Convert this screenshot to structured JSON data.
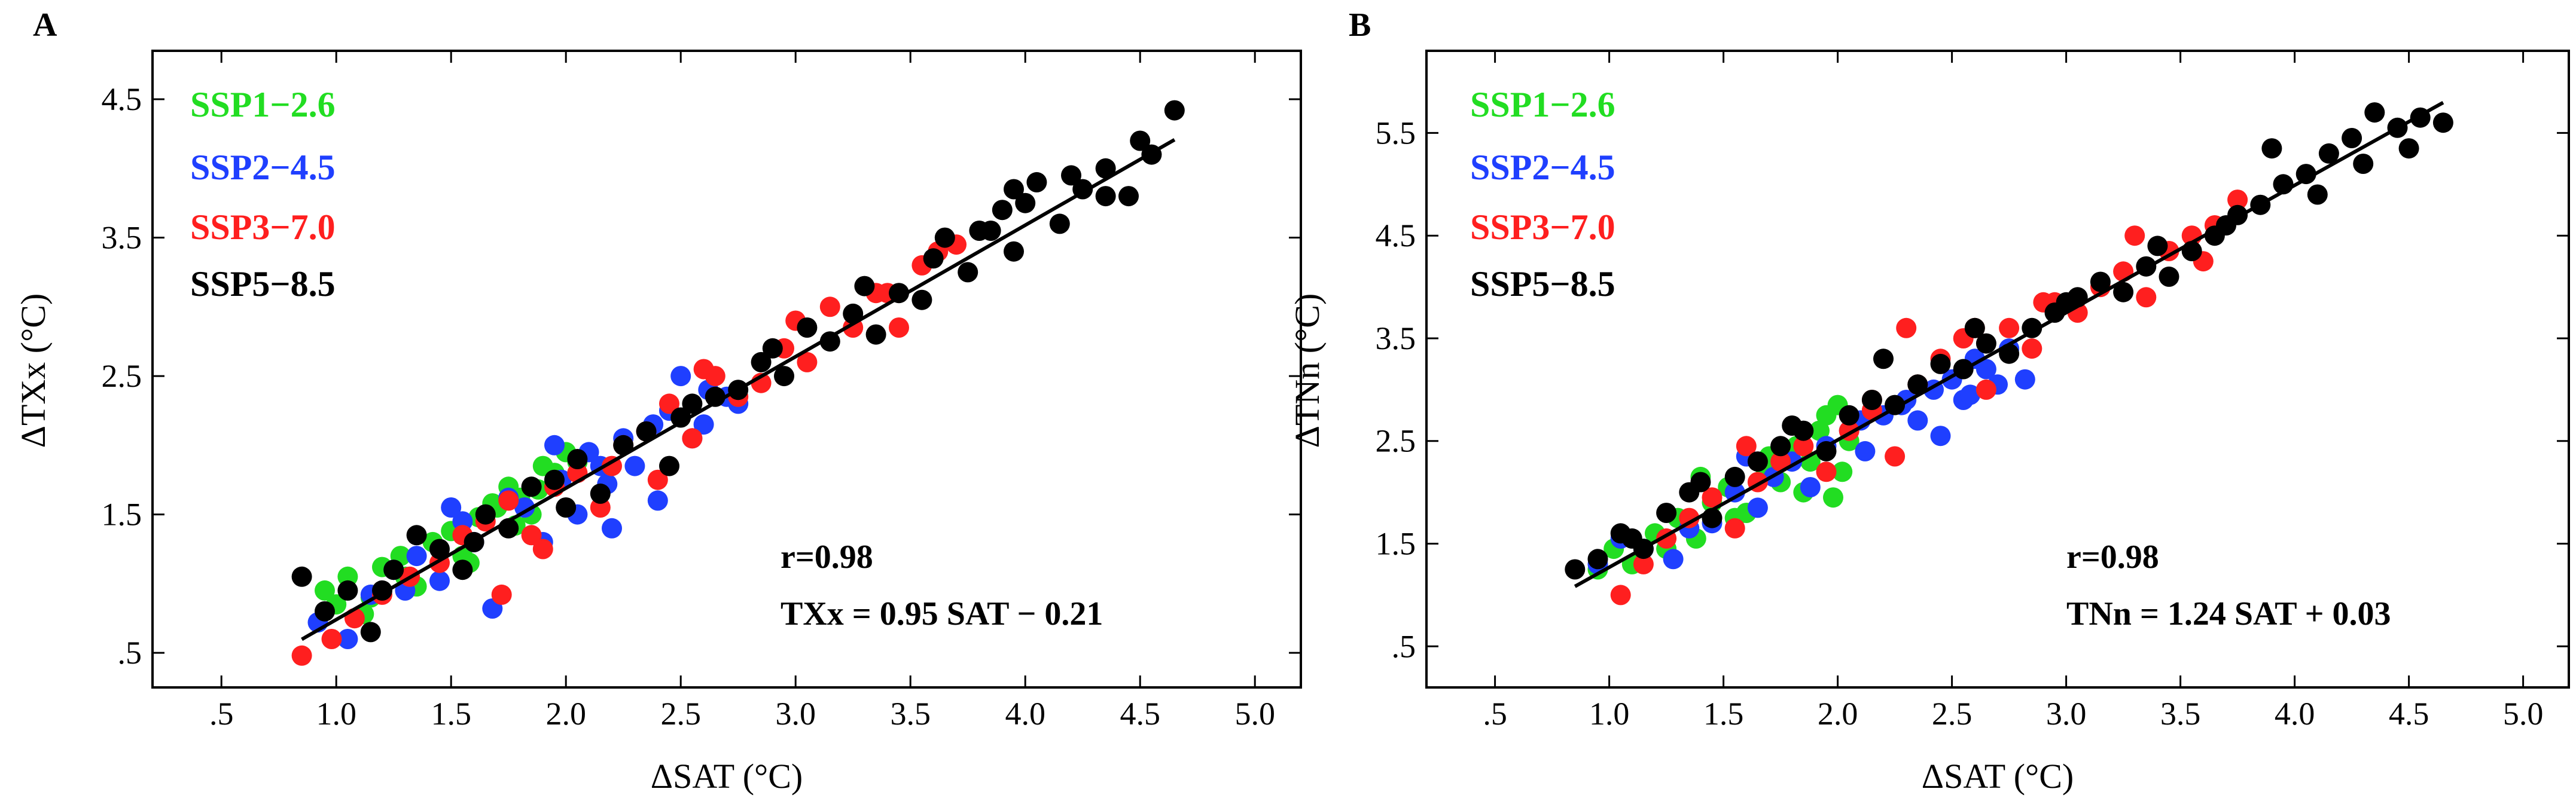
{
  "colors": {
    "SSP1-2.6": "#22dd22",
    "SSP2-4.5": "#1f3fff",
    "SSP3-7.0": "#ff1f1f",
    "SSP5-8.5": "#000000",
    "axis": "#000000",
    "fit_line": "#000000"
  },
  "chart_data": [
    {
      "type": "scatter",
      "panel_label": "A",
      "xlabel": "ΔSAT (°C)",
      "ylabel": "ΔTXx (°C)",
      "xlim": [
        0.2,
        5.2
      ],
      "ylim": [
        0.25,
        4.85
      ],
      "x_tick_values": [
        0.5,
        1.0,
        1.5,
        2.0,
        2.5,
        3.0,
        3.5,
        4.0,
        4.5,
        5.0
      ],
      "x_tick_labels": [
        ".5",
        "1.0",
        "1.5",
        "2.0",
        "2.5",
        "3.0",
        "3.5",
        "4.0",
        "4.5",
        "5.0"
      ],
      "y_tick_values": [
        0.5,
        1.5,
        2.5,
        3.5,
        4.5
      ],
      "y_tick_labels": [
        ".5",
        "1.5",
        "2.5",
        "3.5",
        "4.5"
      ],
      "legend": [
        "SSP1−2.6",
        "SSP2−4.5",
        "SSP3−7.0",
        "SSP5−8.5"
      ],
      "legend_position": "top-left",
      "r_text": "r=0.98",
      "equation_text": "TXx = 0.95 SAT − 0.21",
      "fit": {
        "slope": 0.95,
        "intercept": -0.21,
        "x_range": [
          0.85,
          4.65
        ]
      },
      "series": [
        {
          "name": "SSP1-2.6",
          "x": [
            0.95,
            1.0,
            1.05,
            1.12,
            1.2,
            1.28,
            1.35,
            1.42,
            1.5,
            1.55,
            1.62,
            1.7,
            1.75,
            1.8,
            1.85,
            1.9,
            1.95,
            2.0,
            1.78,
            1.68,
            1.88,
            1.58,
            1.3,
            2.05,
            1.15
          ],
          "y": [
            0.95,
            0.85,
            1.05,
            0.78,
            1.12,
            1.2,
            0.98,
            1.3,
            1.38,
            1.2,
            1.48,
            1.55,
            1.7,
            1.62,
            1.5,
            1.85,
            1.8,
            1.95,
            1.42,
            1.58,
            1.68,
            1.15,
            1.05,
            1.88,
            0.9
          ]
        },
        {
          "name": "SSP2-4.5",
          "x": [
            0.92,
            1.05,
            1.15,
            1.25,
            1.35,
            1.45,
            1.55,
            1.6,
            1.68,
            1.75,
            1.82,
            1.9,
            1.98,
            2.05,
            2.1,
            2.18,
            2.25,
            2.3,
            2.38,
            2.45,
            2.5,
            2.55,
            2.62,
            2.7,
            2.75,
            2.2,
            2.4,
            1.95,
            1.5,
            2.15,
            2.6,
            1.3
          ],
          "y": [
            0.72,
            0.6,
            0.92,
            1.1,
            1.2,
            1.02,
            1.45,
            1.3,
            0.82,
            1.62,
            1.55,
            1.3,
            1.75,
            1.5,
            1.95,
            1.72,
            2.05,
            1.85,
            2.15,
            2.25,
            2.5,
            2.05,
            2.4,
            2.35,
            2.3,
            1.4,
            1.6,
            2.0,
            1.55,
            1.85,
            2.15,
            0.95
          ]
        },
        {
          "name": "SSP3-7.0",
          "x": [
            0.85,
            0.98,
            1.08,
            1.2,
            1.32,
            1.45,
            1.55,
            1.65,
            1.75,
            1.85,
            1.95,
            2.05,
            2.15,
            2.25,
            2.35,
            2.45,
            2.55,
            2.65,
            2.75,
            2.85,
            2.95,
            3.05,
            3.15,
            3.25,
            3.35,
            3.45,
            3.55,
            3.62,
            3.7,
            1.72,
            2.2,
            2.6,
            3.0,
            3.4,
            2.4,
            1.9
          ],
          "y": [
            0.48,
            0.6,
            0.75,
            0.92,
            1.05,
            1.15,
            1.35,
            1.45,
            1.6,
            1.35,
            1.7,
            1.8,
            1.55,
            2.0,
            2.1,
            2.3,
            2.05,
            2.5,
            2.35,
            2.45,
            2.7,
            2.6,
            3.0,
            2.85,
            3.1,
            2.85,
            3.3,
            3.4,
            3.45,
            0.92,
            1.85,
            2.55,
            2.9,
            3.1,
            1.75,
            1.25
          ]
        },
        {
          "name": "SSP5-8.5",
          "x": [
            0.85,
            0.95,
            1.05,
            1.15,
            1.25,
            1.35,
            1.45,
            1.55,
            1.65,
            1.75,
            1.85,
            1.95,
            2.05,
            2.15,
            2.25,
            2.35,
            2.45,
            2.55,
            2.65,
            2.75,
            2.85,
            2.95,
            3.05,
            3.15,
            3.25,
            3.35,
            3.45,
            3.55,
            3.65,
            3.75,
            3.85,
            3.9,
            3.95,
            4.05,
            4.15,
            4.25,
            4.35,
            4.45,
            4.55,
            4.65,
            3.8,
            4.0,
            4.2,
            4.5,
            3.6,
            3.3,
            2.9,
            2.5,
            2.0,
            1.6,
            1.2,
            3.95,
            4.35
          ],
          "y": [
            1.05,
            0.8,
            0.95,
            0.65,
            1.1,
            1.35,
            1.25,
            1.1,
            1.5,
            1.4,
            1.7,
            1.75,
            1.9,
            1.65,
            2.0,
            2.1,
            1.85,
            2.3,
            2.35,
            2.4,
            2.6,
            2.5,
            2.85,
            2.75,
            2.95,
            2.8,
            3.1,
            3.05,
            3.5,
            3.25,
            3.55,
            3.7,
            3.4,
            3.9,
            3.6,
            3.85,
            4.0,
            3.8,
            4.1,
            4.42,
            3.55,
            3.75,
            3.95,
            4.2,
            3.35,
            3.15,
            2.7,
            2.2,
            1.55,
            1.3,
            0.95,
            3.85,
            3.8
          ]
        }
      ]
    },
    {
      "type": "scatter",
      "panel_label": "B",
      "xlabel": "ΔSAT (°C)",
      "ylabel": "ΔTNn (°C)",
      "xlim": [
        0.2,
        5.2
      ],
      "ylim": [
        0.1,
        6.3
      ],
      "x_tick_values": [
        0.5,
        1.0,
        1.5,
        2.0,
        2.5,
        3.0,
        3.5,
        4.0,
        4.5,
        5.0
      ],
      "x_tick_labels": [
        ".5",
        "1.0",
        "1.5",
        "2.0",
        "2.5",
        "3.0",
        "3.5",
        "4.0",
        "4.5",
        "5.0"
      ],
      "y_tick_values": [
        0.5,
        1.5,
        2.5,
        3.5,
        4.5,
        5.5
      ],
      "y_tick_labels": [
        ".5",
        "1.5",
        "2.5",
        "3.5",
        "4.5",
        "5.5"
      ],
      "legend": [
        "SSP1−2.6",
        "SSP2−4.5",
        "SSP3−7.0",
        "SSP5−8.5"
      ],
      "legend_position": "top-left",
      "r_text": "r=0.98",
      "equation_text": "TNn = 1.24 SAT + 0.03",
      "fit": {
        "slope": 1.24,
        "intercept": 0.03,
        "x_range": [
          0.85,
          4.65
        ]
      },
      "series": [
        {
          "name": "SSP1-2.6",
          "x": [
            0.95,
            1.02,
            1.1,
            1.2,
            1.3,
            1.38,
            1.45,
            1.52,
            1.6,
            1.68,
            1.75,
            1.82,
            1.88,
            1.92,
            1.95,
            2.0,
            2.05,
            1.98,
            1.85,
            1.7,
            1.55,
            1.4,
            1.25,
            2.02
          ],
          "y": [
            1.25,
            1.45,
            1.3,
            1.6,
            1.75,
            1.55,
            1.9,
            2.05,
            1.8,
            2.25,
            2.1,
            2.45,
            2.3,
            2.6,
            2.75,
            2.85,
            2.5,
            1.95,
            2.0,
            2.35,
            1.75,
            2.15,
            1.45,
            2.2
          ]
        },
        {
          "name": "SSP2-4.5",
          "x": [
            0.95,
            1.05,
            1.15,
            1.28,
            1.35,
            1.45,
            1.55,
            1.65,
            1.72,
            1.8,
            1.88,
            1.95,
            2.05,
            2.12,
            2.2,
            2.28,
            2.35,
            2.42,
            2.5,
            2.55,
            2.6,
            2.65,
            2.7,
            2.75,
            2.82,
            2.45,
            2.3,
            2.1,
            1.6,
            2.58
          ],
          "y": [
            1.3,
            1.55,
            1.45,
            1.35,
            1.65,
            1.7,
            2.0,
            1.85,
            2.15,
            2.3,
            2.05,
            2.45,
            2.6,
            2.4,
            2.75,
            2.85,
            2.7,
            3.0,
            3.1,
            2.9,
            3.3,
            3.2,
            3.05,
            3.4,
            3.1,
            2.55,
            2.9,
            2.7,
            2.35,
            2.95
          ]
        },
        {
          "name": "SSP3-7.0",
          "x": [
            1.05,
            1.15,
            1.25,
            1.35,
            1.45,
            1.55,
            1.65,
            1.75,
            1.85,
            1.95,
            2.05,
            2.15,
            2.25,
            2.35,
            2.45,
            2.55,
            2.65,
            2.75,
            2.85,
            2.95,
            3.05,
            3.15,
            3.25,
            3.35,
            3.45,
            3.55,
            3.65,
            3.75,
            2.3,
            2.6,
            2.9,
            3.3,
            3.6,
            2.15,
            1.6
          ],
          "y": [
            1.0,
            1.3,
            1.55,
            1.75,
            1.95,
            1.65,
            2.1,
            2.3,
            2.45,
            2.2,
            2.6,
            2.8,
            2.35,
            3.05,
            3.3,
            3.5,
            3.0,
            3.6,
            3.4,
            3.85,
            3.75,
            4.0,
            4.15,
            3.9,
            4.35,
            4.5,
            4.6,
            4.85,
            3.6,
            3.6,
            3.85,
            4.5,
            4.25,
            2.9,
            2.45
          ]
        },
        {
          "name": "SSP5-8.5",
          "x": [
            0.85,
            0.95,
            1.05,
            1.15,
            1.25,
            1.35,
            1.45,
            1.55,
            1.65,
            1.75,
            1.85,
            1.95,
            2.05,
            2.15,
            2.25,
            2.35,
            2.45,
            2.55,
            2.65,
            2.75,
            2.85,
            2.95,
            3.05,
            3.15,
            3.25,
            3.35,
            3.45,
            3.55,
            3.65,
            3.75,
            3.85,
            3.95,
            4.05,
            4.15,
            4.25,
            4.35,
            4.45,
            4.55,
            4.65,
            3.9,
            4.1,
            4.3,
            4.5,
            3.7,
            3.4,
            3.0,
            2.6,
            2.2,
            1.8,
            1.4,
            1.1
          ],
          "y": [
            1.25,
            1.35,
            1.6,
            1.45,
            1.8,
            2.0,
            1.75,
            2.15,
            2.3,
            2.45,
            2.6,
            2.4,
            2.75,
            2.9,
            2.85,
            3.05,
            3.25,
            3.2,
            3.45,
            3.35,
            3.6,
            3.75,
            3.9,
            4.05,
            3.95,
            4.2,
            4.1,
            4.35,
            4.5,
            4.7,
            4.8,
            5.0,
            5.1,
            5.3,
            5.45,
            5.7,
            5.55,
            5.65,
            5.6,
            5.35,
            4.9,
            5.2,
            5.35,
            4.6,
            4.4,
            3.85,
            3.6,
            3.3,
            2.65,
            2.1,
            1.55
          ]
        }
      ]
    }
  ]
}
